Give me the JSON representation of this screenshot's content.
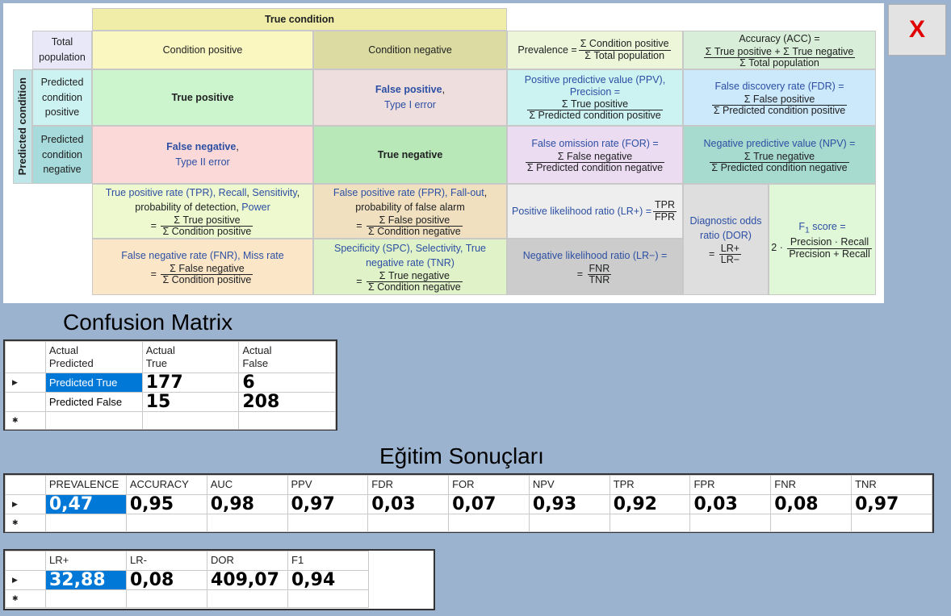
{
  "reference": {
    "true_condition": "True condition",
    "predicted_condition": "Predicted condition",
    "total_population": "Total population",
    "condition_positive": "Condition positive",
    "condition_negative": "Condition negative",
    "prevalence": {
      "label": "Prevalence =",
      "num": "Σ Condition positive",
      "den": "Σ Total population"
    },
    "accuracy": {
      "label": "Accuracy (ACC) =",
      "num": "Σ True positive + Σ True negative",
      "den": "Σ Total population"
    },
    "predicted_condition_positive": "Predicted condition positive",
    "predicted_condition_negative": "Predicted condition negative",
    "true_positive": "True positive",
    "false_positive": "False positive",
    "type1": "Type I error",
    "false_negative": "False negative",
    "type2": "Type II error",
    "true_negative": "True negative",
    "ppv": {
      "label1": "Positive predictive value (PPV),",
      "label2": "Precision =",
      "num": "Σ True positive",
      "den": "Σ Predicted condition positive"
    },
    "fdr": {
      "label": "False discovery rate (FDR) =",
      "num": "Σ False positive",
      "den": "Σ Predicted condition positive"
    },
    "for": {
      "label": "False omission rate (FOR) =",
      "num": "Σ False negative",
      "den": "Σ Predicted condition negative"
    },
    "npv": {
      "label": "Negative predictive value (NPV) =",
      "num": "Σ True negative",
      "den": "Σ Predicted condition negative"
    },
    "tpr": {
      "p1": "True positive rate (TPR),",
      "p2": "Recall",
      "p3": "Sensitivity",
      "p4": "probability of detection,",
      "p5": "Power",
      "num": "Σ True positive",
      "den": "Σ Condition positive"
    },
    "fpr": {
      "p1": "False positive rate (FPR),",
      "p2": "Fall-out",
      "p3": "probability of false alarm",
      "num": "Σ False positive",
      "den": "Σ Condition negative"
    },
    "lrp": {
      "label": "Positive likelihood ratio (LR+) =",
      "num": "TPR",
      "den": "FPR"
    },
    "dor": {
      "l1": "Diagnostic odds",
      "l2": "ratio (DOR)",
      "num": "LR+",
      "den": "LR−"
    },
    "f1": {
      "label": "F",
      "sub": "1",
      "label2": "score =",
      "pre": "2 ·",
      "num": "Precision · Recall",
      "den": "Precision + Recall"
    },
    "fnr": {
      "label": "False negative rate (FNR), Miss rate",
      "num": "Σ False negative",
      "den": "Σ Condition positive"
    },
    "spc": {
      "p1": "Specificity (SPC), Selectivity,",
      "p2": "True",
      "p3": "negative rate",
      "p4": "(TNR)",
      "num": "Σ True negative",
      "den": "Σ Condition negative"
    },
    "lrn": {
      "label": "Negative likelihood ratio (LR−) =",
      "num": "FNR",
      "den": "TNR"
    }
  },
  "close_button": "X",
  "confusion": {
    "title": "Confusion Matrix",
    "header_corner_l1": "Actual",
    "header_corner_l2": "Predicted",
    "columns": [
      {
        "l1": "Actual",
        "l2": "True"
      },
      {
        "l1": "Actual",
        "l2": "False"
      }
    ],
    "rows": [
      {
        "label": "Predicted True",
        "values": [
          "177",
          "6"
        ]
      },
      {
        "label": "Predicted False",
        "values": [
          "15",
          "208"
        ]
      }
    ]
  },
  "results": {
    "title": "Eğitim Sonuçları",
    "headers": [
      "PREVALENCE",
      "ACCURACY",
      "AUC",
      "PPV",
      "FDR",
      "FOR",
      "NPV",
      "TPR",
      "FPR",
      "FNR",
      "TNR"
    ],
    "values": [
      "0,47",
      "0,95",
      "0,98",
      "0,97",
      "0,03",
      "0,07",
      "0,93",
      "0,92",
      "0,03",
      "0,08",
      "0,97"
    ]
  },
  "results2": {
    "headers": [
      "LR+",
      "LR-",
      "DOR",
      "F1"
    ],
    "values": [
      "32,88",
      "0,08",
      "409,07",
      "0,94"
    ]
  }
}
